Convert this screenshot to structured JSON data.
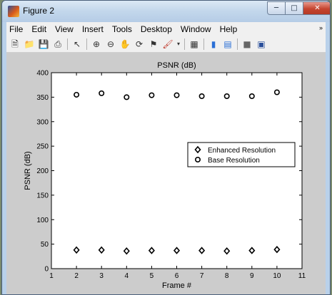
{
  "window": {
    "title": "Figure 2",
    "min_icon": "minimize-icon",
    "max_icon": "maximize-icon",
    "close_icon": "close-icon"
  },
  "menu": {
    "items": [
      "File",
      "Edit",
      "View",
      "Insert",
      "Tools",
      "Desktop",
      "Window",
      "Help"
    ],
    "overflow_glyph": "»"
  },
  "toolbar": {
    "icons": [
      "new-figure-icon",
      "open-file-icon",
      "save-icon",
      "print-icon",
      "|",
      "edit-plot-arrow-icon",
      "|",
      "zoom-in-icon",
      "zoom-out-icon",
      "pan-hand-icon",
      "rotate-3d-icon",
      "data-cursor-icon",
      "brush-icon",
      "|",
      "link-plot-icon",
      "|",
      "colorbar-icon",
      "legend-icon",
      "|",
      "hide-plot-tools-icon",
      "show-plot-tools-icon"
    ]
  },
  "chart_data": {
    "type": "scatter",
    "title": "PSNR (dB)",
    "xlabel": "Frame #",
    "ylabel": "PSNR (dB)",
    "xlim": [
      1,
      11
    ],
    "ylim": [
      0,
      400
    ],
    "xticks": [
      1,
      2,
      3,
      4,
      5,
      6,
      7,
      8,
      9,
      10,
      11
    ],
    "yticks": [
      0,
      50,
      100,
      150,
      200,
      250,
      300,
      350,
      400
    ],
    "grid": false,
    "legend_position": "right",
    "series": [
      {
        "name": "Enhanced Resolution",
        "marker": "diamond",
        "x": [
          2,
          3,
          4,
          5,
          6,
          7,
          8,
          9,
          10
        ],
        "y": [
          38,
          38,
          36,
          37,
          37,
          37,
          36,
          37,
          39
        ]
      },
      {
        "name": "Base Resolution",
        "marker": "circle",
        "x": [
          2,
          3,
          4,
          5,
          6,
          7,
          8,
          9,
          10
        ],
        "y": [
          355,
          358,
          350,
          354,
          354,
          352,
          352,
          352,
          360
        ]
      }
    ]
  }
}
